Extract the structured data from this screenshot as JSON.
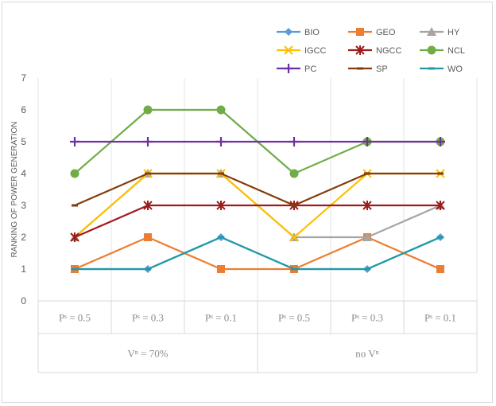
{
  "chart_data": {
    "type": "line",
    "ylabel": "RANKING OF POWER GENERATION",
    "ylim": [
      0,
      7
    ],
    "yticks": [
      "0",
      "1",
      "2",
      "3",
      "4",
      "5",
      "6",
      "7"
    ],
    "categories": [
      "Pˢ = 0.5",
      "Pˢ = 0.3",
      "Pˢ = 0.1",
      "Pˢ = 0.5",
      "Pˢ = 0.3",
      "Pˢ = 0.1"
    ],
    "groups": [
      {
        "label": "Vⁿ = 70%",
        "span": [
          0,
          3
        ]
      },
      {
        "label": "no Vⁿ",
        "span": [
          3,
          6
        ]
      }
    ],
    "grid": true,
    "legend_position": "top-right",
    "series": [
      {
        "name": "BIO",
        "color": "#5b9bd5",
        "marker": "diamond",
        "values": [
          1,
          1,
          2,
          1,
          1,
          2
        ]
      },
      {
        "name": "GEO",
        "color": "#ed7d31",
        "marker": "square",
        "values": [
          1,
          2,
          1,
          1,
          2,
          1
        ]
      },
      {
        "name": "HY",
        "color": "#a5a5a5",
        "marker": "triangle",
        "values": [
          2,
          4,
          4,
          2,
          2,
          3
        ]
      },
      {
        "name": "IGCC",
        "color": "#ffc000",
        "marker": "x",
        "values": [
          2,
          4,
          4,
          2,
          4,
          4
        ]
      },
      {
        "name": "NGCC",
        "color": "#9e1b1b",
        "marker": "star",
        "values": [
          2,
          3,
          3,
          3,
          3,
          3
        ]
      },
      {
        "name": "NCL",
        "color": "#70ad47",
        "marker": "circle",
        "values": [
          4,
          6,
          6,
          4,
          5,
          5
        ]
      },
      {
        "name": "PC",
        "color": "#7030a0",
        "marker": "plus",
        "values": [
          5,
          5,
          5,
          5,
          5,
          5
        ]
      },
      {
        "name": "SP",
        "color": "#843c0c",
        "marker": "dash",
        "values": [
          3,
          4,
          4,
          3,
          4,
          4
        ]
      },
      {
        "name": "WO",
        "color": "#1f9aa6",
        "marker": "dash",
        "values": [
          1,
          1,
          2,
          1,
          1,
          2
        ]
      }
    ]
  }
}
